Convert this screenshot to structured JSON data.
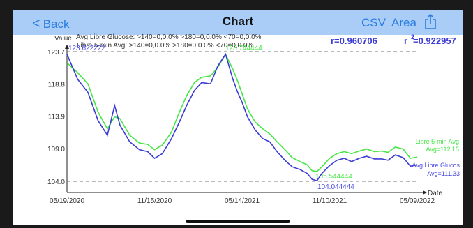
{
  "nav": {
    "back_label": "Back",
    "title": "Chart",
    "csv_label": "CSV",
    "area_label": "Area",
    "share_icon": "share-icon"
  },
  "colors": {
    "series1": "#3b3bd6",
    "series2": "#45e645",
    "nav_bg": "#a9cdf6",
    "nav_text": "#2a7de1"
  },
  "stats": {
    "r": "r=0.960706",
    "r2_base": "r",
    "r2_exp": "2",
    "r2_val": " =0.922957"
  },
  "summary": {
    "line1": "Avg Libre Glucose: >140=0,0.0%  >180=0,0.0%  <70=0,0.0%",
    "line2": "Libre 5-min Avg: >140=0,0.0%  >180=0,0.0%  <70=0,0.0%"
  },
  "annotations": {
    "max_blue": "123.622222",
    "max_green": "123.744444",
    "min_green": "105.544444",
    "min_blue": "104.044444"
  },
  "chart_data": {
    "type": "line",
    "xlabel": "Date",
    "ylabel": "Value",
    "x_ticks": [
      "05/19/2020",
      "11/15/2020",
      "05/14/2021",
      "11/10/2021",
      "05/09/2022"
    ],
    "y_ticks": [
      "104.0",
      "109.0",
      "113.9",
      "118.8",
      "123.7"
    ],
    "ylim": [
      104.0,
      123.7
    ],
    "reference_lines": [
      104.0,
      123.7
    ],
    "series": [
      {
        "name": "Avg Libre Glucose",
        "legend": [
          "Avg Libre Glucos",
          "Avg=111.33"
        ],
        "color": "#3b3bd6",
        "x": [
          "05/19/2020",
          "06/10/2020",
          "07/01/2020",
          "07/22/2020",
          "08/10/2020",
          "08/25/2020",
          "09/05/2020",
          "09/25/2020",
          "10/15/2020",
          "11/01/2020",
          "11/15/2020",
          "12/01/2020",
          "12/20/2020",
          "01/05/2021",
          "01/20/2021",
          "02/05/2021",
          "02/20/2021",
          "03/10/2021",
          "03/25/2021",
          "04/10/2021",
          "04/25/2021",
          "05/05/2021",
          "05/14/2021",
          "05/25/2021",
          "06/10/2021",
          "06/25/2021",
          "07/10/2021",
          "07/25/2021",
          "08/10/2021",
          "08/25/2021",
          "09/10/2021",
          "09/25/2021",
          "10/05/2021",
          "10/15/2021",
          "10/25/2021",
          "11/10/2021",
          "11/25/2021",
          "12/10/2021",
          "12/25/2021",
          "01/10/2022",
          "01/25/2022",
          "02/10/2022",
          "02/25/2022",
          "03/10/2022",
          "03/25/2022",
          "04/10/2022",
          "04/25/2022",
          "05/09/2022"
        ],
        "values": [
          123.3,
          119.5,
          117.5,
          113.2,
          111.0,
          115.5,
          112.5,
          110.0,
          108.8,
          108.5,
          107.5,
          108.2,
          110.5,
          113.0,
          115.5,
          117.8,
          119.0,
          118.8,
          121.5,
          123.3,
          119.5,
          117.5,
          116.0,
          113.8,
          111.8,
          110.5,
          110.0,
          108.5,
          107.2,
          106.2,
          105.8,
          105.2,
          104.3,
          104.1,
          105.2,
          106.4,
          107.2,
          107.5,
          107.0,
          107.5,
          107.8,
          107.4,
          107.4,
          107.2,
          108.0,
          107.6,
          106.3,
          106.5
        ]
      },
      {
        "name": "Libre 5-min Avg",
        "legend": [
          "Libre 5-min Avg",
          "Avg=112.15"
        ],
        "color": "#45e645",
        "x": [
          "05/19/2020",
          "06/10/2020",
          "07/01/2020",
          "07/22/2020",
          "08/10/2020",
          "08/25/2020",
          "09/05/2020",
          "09/25/2020",
          "10/15/2020",
          "11/01/2020",
          "11/15/2020",
          "12/01/2020",
          "12/20/2020",
          "01/05/2021",
          "01/20/2021",
          "02/05/2021",
          "02/20/2021",
          "03/10/2021",
          "03/25/2021",
          "04/10/2021",
          "04/25/2021",
          "05/05/2021",
          "05/14/2021",
          "05/25/2021",
          "06/10/2021",
          "06/25/2021",
          "07/10/2021",
          "07/25/2021",
          "08/10/2021",
          "08/25/2021",
          "09/10/2021",
          "09/25/2021",
          "10/05/2021",
          "10/15/2021",
          "10/25/2021",
          "11/10/2021",
          "11/25/2021",
          "12/10/2021",
          "12/25/2021",
          "01/10/2022",
          "01/25/2022",
          "02/10/2022",
          "02/25/2022",
          "03/10/2022",
          "03/25/2022",
          "04/10/2022",
          "04/25/2022",
          "05/09/2022"
        ],
        "values": [
          122.0,
          120.5,
          118.8,
          114.5,
          112.0,
          113.8,
          113.5,
          111.0,
          109.8,
          109.6,
          108.8,
          109.5,
          111.5,
          114.5,
          117.0,
          119.0,
          119.8,
          120.0,
          121.3,
          123.3,
          121.0,
          119.2,
          117.3,
          115.0,
          113.0,
          112.0,
          111.2,
          110.0,
          108.8,
          107.6,
          107.0,
          106.5,
          105.6,
          105.5,
          106.2,
          107.5,
          108.2,
          108.5,
          108.2,
          108.6,
          108.9,
          108.5,
          108.6,
          108.4,
          109.2,
          108.9,
          107.5,
          107.7
        ]
      }
    ]
  }
}
